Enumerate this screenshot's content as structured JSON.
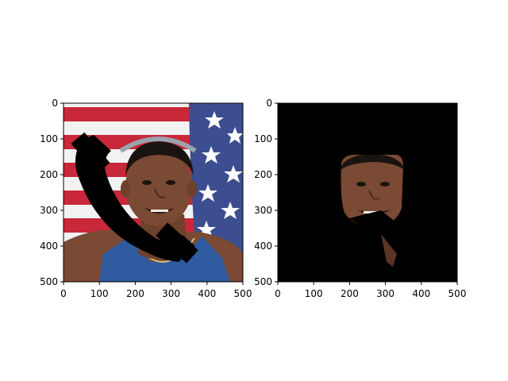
{
  "figure": {
    "panels": [
      {
        "name": "left",
        "xticks": [
          0,
          100,
          200,
          300,
          400,
          500
        ],
        "yticks": [
          0,
          100,
          200,
          300,
          400,
          500
        ],
        "xlim": [
          0,
          500
        ],
        "ylim": [
          500,
          0
        ],
        "content": "photo of a smiling athlete in front of an American flag with a black telephone-handset occlusion"
      },
      {
        "name": "right",
        "xticks": [
          0,
          100,
          200,
          300,
          400,
          500
        ],
        "yticks": [
          0,
          100,
          200,
          300,
          400,
          500
        ],
        "xlim": [
          0,
          500
        ],
        "ylim": [
          500,
          0
        ],
        "content": "face segmentation mask on a black background with part of the occlusion visible"
      }
    ],
    "colors": {
      "flag_red": "#c8283a",
      "flag_white": "#f2f2f2",
      "flag_blue": "#3c4e8f",
      "skin": "#7a4a34",
      "jersey": "#2f5aa0",
      "mask_bg": "#000000"
    }
  }
}
